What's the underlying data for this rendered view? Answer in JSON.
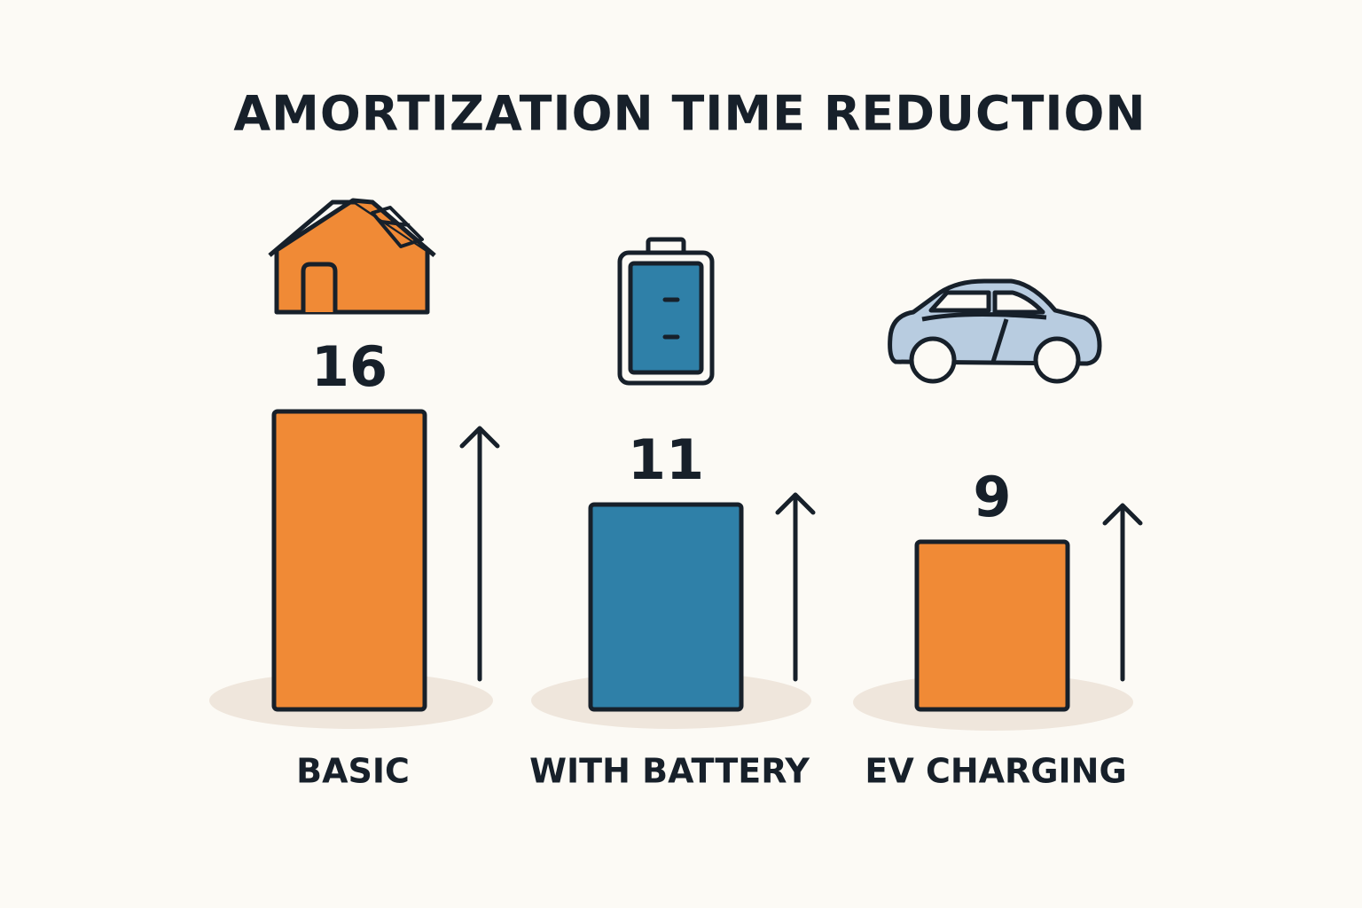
{
  "chart_data": {
    "type": "bar",
    "title": "AMORTIZATION TIME REDUCTION",
    "categories": [
      "BASIC",
      "WITH BATTERY",
      "EV CHARGING"
    ],
    "values": [
      16,
      11,
      9
    ],
    "colors": [
      "#f08a36",
      "#2f80a8",
      "#f08a36"
    ]
  }
}
